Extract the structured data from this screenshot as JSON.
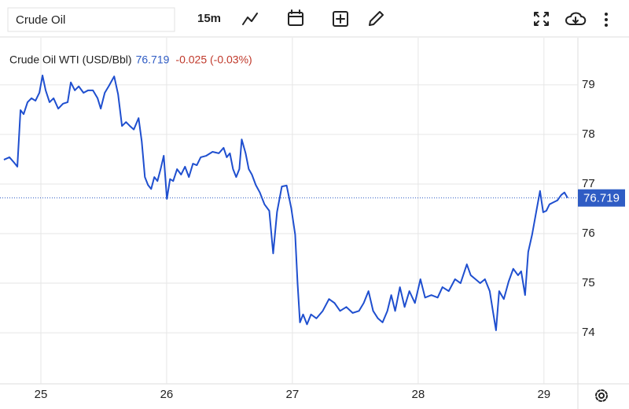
{
  "toolbar": {
    "symbol": "Crude Oil",
    "interval": "15m"
  },
  "chart_data": {
    "type": "line",
    "title": "Crude Oil WTI (USD/Bbl)",
    "last_price": 76.719,
    "change": "-0.025 (-0.03%)",
    "color": "#1f4fcf",
    "grid": true,
    "xlim": [
      24.675,
      29.27
    ],
    "xticks": [
      25,
      26,
      27,
      28,
      29
    ],
    "ylim": [
      72.97,
      79.95
    ],
    "yticks": [
      74,
      75,
      76,
      77,
      78,
      79
    ],
    "x": [
      24.706,
      24.75,
      24.788,
      24.813,
      24.838,
      24.863,
      24.894,
      24.925,
      24.957,
      24.988,
      25.013,
      25.038,
      25.069,
      25.101,
      25.138,
      25.176,
      25.213,
      25.238,
      25.27,
      25.301,
      25.339,
      25.376,
      25.414,
      25.451,
      25.476,
      25.508,
      25.539,
      25.583,
      25.614,
      25.645,
      25.677,
      25.708,
      25.739,
      25.777,
      25.802,
      25.827,
      25.852,
      25.877,
      25.902,
      25.927,
      25.952,
      25.977,
      26.002,
      26.027,
      26.052,
      26.083,
      26.115,
      26.146,
      26.177,
      26.209,
      26.24,
      26.271,
      26.315,
      26.365,
      26.415,
      26.453,
      26.478,
      26.503,
      26.528,
      26.553,
      26.578,
      26.597,
      26.628,
      26.653,
      26.678,
      26.709,
      26.741,
      26.778,
      26.816,
      26.847,
      26.878,
      26.916,
      26.954,
      26.991,
      27.022,
      27.041,
      27.06,
      27.085,
      27.116,
      27.148,
      27.191,
      27.241,
      27.291,
      27.335,
      27.379,
      27.429,
      27.479,
      27.529,
      27.567,
      27.605,
      27.642,
      27.68,
      27.717,
      27.755,
      27.786,
      27.817,
      27.855,
      27.892,
      27.93,
      27.974,
      28.018,
      28.055,
      28.105,
      28.155,
      28.193,
      28.243,
      28.293,
      28.337,
      28.387,
      28.418,
      28.456,
      28.493,
      28.531,
      28.569,
      28.594,
      28.619,
      28.644,
      28.681,
      28.719,
      28.756,
      28.794,
      28.819,
      28.85,
      28.875,
      28.906,
      28.938,
      28.969,
      28.994,
      29.019,
      29.044,
      29.075,
      29.107,
      29.138,
      29.163,
      29.188
    ],
    "values": [
      77.49,
      77.54,
      77.43,
      77.35,
      78.49,
      78.41,
      78.65,
      78.73,
      78.68,
      78.84,
      79.19,
      78.89,
      78.65,
      78.73,
      78.52,
      78.62,
      78.65,
      79.05,
      78.89,
      78.97,
      78.84,
      78.89,
      78.89,
      78.73,
      78.52,
      78.84,
      78.97,
      79.17,
      78.81,
      78.17,
      78.25,
      78.17,
      78.1,
      78.33,
      77.86,
      77.14,
      76.98,
      76.9,
      77.14,
      77.06,
      77.3,
      77.57,
      76.7,
      77.1,
      77.06,
      77.3,
      77.19,
      77.35,
      77.14,
      77.41,
      77.38,
      77.54,
      77.57,
      77.65,
      77.62,
      77.73,
      77.54,
      77.62,
      77.3,
      77.14,
      77.3,
      77.9,
      77.62,
      77.3,
      77.19,
      76.98,
      76.83,
      76.59,
      76.46,
      75.6,
      76.44,
      76.95,
      76.97,
      76.51,
      75.98,
      75.0,
      74.21,
      74.37,
      74.17,
      74.37,
      74.29,
      74.44,
      74.68,
      74.6,
      74.44,
      74.52,
      74.4,
      74.44,
      74.6,
      74.84,
      74.44,
      74.29,
      74.21,
      74.44,
      74.76,
      74.44,
      74.92,
      74.52,
      74.84,
      74.6,
      75.08,
      74.71,
      74.76,
      74.71,
      74.92,
      74.84,
      75.08,
      75.0,
      75.38,
      75.16,
      75.08,
      75.0,
      75.08,
      74.84,
      74.44,
      74.05,
      74.84,
      74.68,
      75.03,
      75.29,
      75.16,
      75.24,
      74.76,
      75.63,
      75.98,
      76.43,
      76.86,
      76.43,
      76.46,
      76.59,
      76.63,
      76.67,
      76.78,
      76.83,
      76.72
    ]
  }
}
